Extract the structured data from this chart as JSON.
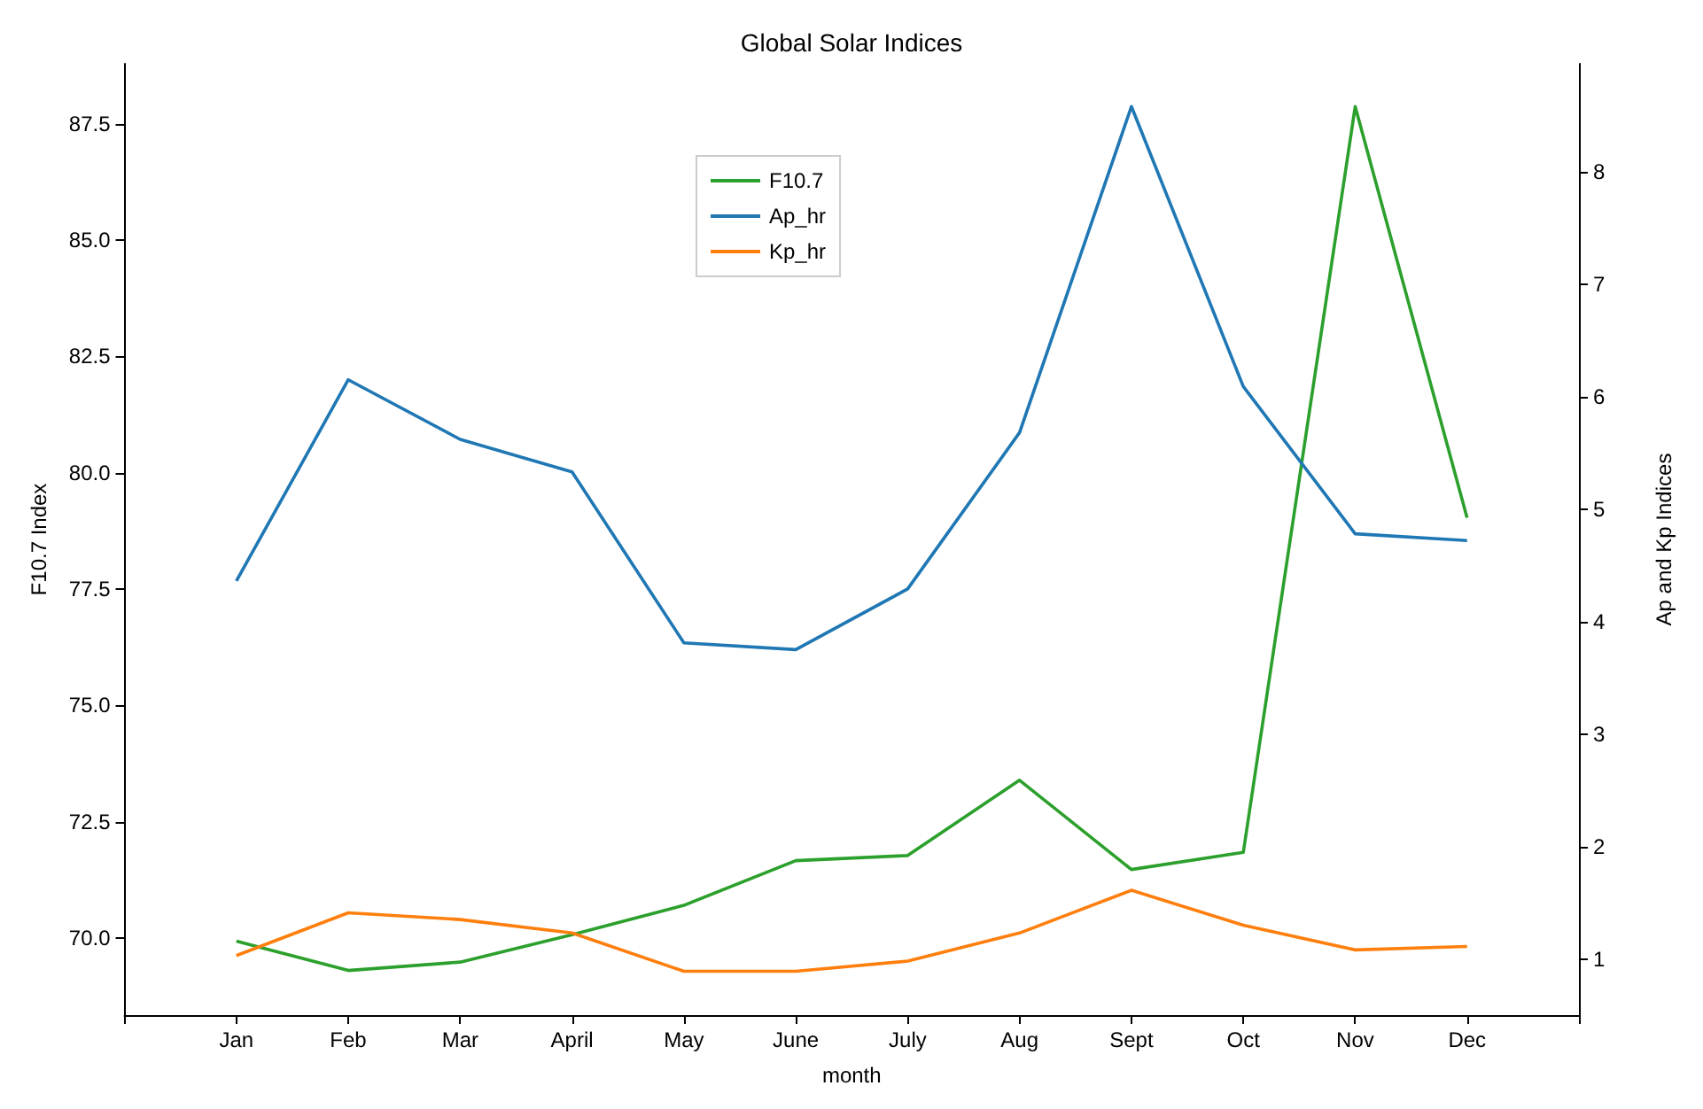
{
  "chart_data": {
    "type": "line",
    "title": "Global Solar Indices",
    "xlabel": "month",
    "ylabel": "F10.7 Index",
    "y2label": "Ap and Kp Indices",
    "categories": [
      "Jan",
      "Feb",
      "Mar",
      "April",
      "May",
      "June",
      "July",
      "Aug",
      "Sept",
      "Oct",
      "Nov",
      "Dec"
    ],
    "series": [
      {
        "name": "F10.7",
        "color": "#2ca02c",
        "values": [
          69.93,
          69.3,
          69.48,
          70.07,
          70.7,
          71.66,
          71.77,
          73.39,
          71.47,
          71.84,
          87.87,
          79.03
        ]
      },
      {
        "name": "Ap_hr",
        "color": "#1f77b4",
        "axis": "y2",
        "values": [
          4.36,
          6.15,
          5.62,
          5.33,
          3.81,
          3.75,
          4.29,
          5.68,
          8.58,
          6.09,
          4.78,
          4.72
        ]
      },
      {
        "name": "Kp_hr",
        "color": "#ff7f0e",
        "axis": "y2",
        "values": [
          1.03,
          1.41,
          1.35,
          1.23,
          0.89,
          0.89,
          0.98,
          1.23,
          1.61,
          1.3,
          1.08,
          1.11
        ]
      }
    ],
    "ylim": [
      68.34,
      88.79
    ],
    "yticks": [
      {
        "value": 70,
        "label": "70.0"
      },
      {
        "value": 72.5,
        "label": "72.5"
      },
      {
        "value": 75,
        "label": "75.0"
      },
      {
        "value": 77.5,
        "label": "77.5"
      },
      {
        "value": 80,
        "label": "80.0"
      },
      {
        "value": 82.5,
        "label": "82.5"
      },
      {
        "value": 85,
        "label": "85.0"
      },
      {
        "value": 87.5,
        "label": "87.5"
      }
    ],
    "y2lim": [
      0.5,
      8.96
    ],
    "y2ticks": [
      1,
      2,
      3,
      4,
      5,
      6,
      7,
      8
    ],
    "legend": "top",
    "grid": false
  }
}
